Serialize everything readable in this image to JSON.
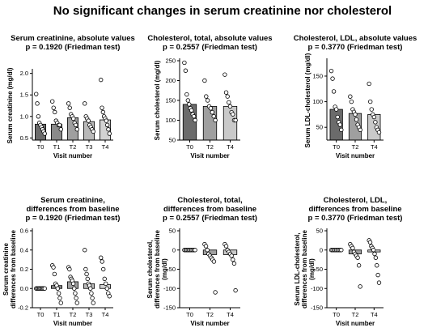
{
  "figure_title": "No significant changes in serum creatinine nor cholesterol",
  "chart_data": [
    {
      "type": "bar",
      "title": [
        "Serum creatinine, absolute values",
        "p = 0.1920 (Friedman test)"
      ],
      "xlabel": "Visit number",
      "ylabel": [
        "Serum creatinine (mg/dl)"
      ],
      "categories": [
        "T0",
        "T1",
        "T2",
        "T3",
        "T4"
      ],
      "values": [
        0.82,
        0.82,
        0.97,
        0.88,
        0.92
      ],
      "bar_colors": [
        "#6b6b6b",
        "#8a8a8a",
        "#9f9f9f",
        "#b9b9b9",
        "#d2d2d2"
      ],
      "points": [
        [
          1.52,
          1.3,
          1.0,
          0.85,
          0.8,
          0.75,
          0.7,
          0.65,
          0.6
        ],
        [
          1.35,
          1.2,
          1.1,
          0.9,
          0.85,
          0.8,
          0.8,
          0.7
        ],
        [
          1.3,
          1.2,
          1.05,
          1.0,
          0.95,
          0.85,
          0.8,
          0.7
        ],
        [
          1.3,
          1.0,
          0.95,
          0.9,
          0.8,
          0.75,
          0.7,
          0.65
        ],
        [
          1.85,
          1.2,
          1.1,
          1.0,
          0.95,
          0.9,
          0.8,
          0.7,
          0.6
        ]
      ],
      "ylim": [
        0.45,
        2.05
      ],
      "yticks": [
        0.5,
        1.0,
        1.5,
        2.0
      ],
      "ytick_labels": [
        "0.5",
        "1.0",
        "1.5",
        "2.0"
      ]
    },
    {
      "type": "bar",
      "title": [
        "Cholesterol, total, absolute values",
        "p = 0.2557 (Friedman test)"
      ],
      "xlabel": "Visit number",
      "ylabel": [
        "Serum cholesterol (mg/dl)"
      ],
      "categories": [
        "T0",
        "T2",
        "T4"
      ],
      "values": [
        140,
        135,
        135
      ],
      "bar_colors": [
        "#6b6b6b",
        "#9f9f9f",
        "#c9c9c9"
      ],
      "points": [
        [
          245,
          225,
          165,
          150,
          140,
          130,
          125,
          115,
          110,
          100
        ],
        [
          200,
          160,
          150,
          135,
          130,
          120,
          110,
          100
        ],
        [
          215,
          170,
          160,
          145,
          135,
          120,
          115,
          100,
          100
        ]
      ],
      "ylim": [
        50,
        250
      ],
      "yticks": [
        50,
        100,
        150,
        200,
        250
      ],
      "ytick_labels": [
        "50",
        "100",
        "150",
        "200",
        "250"
      ]
    },
    {
      "type": "bar",
      "title": [
        "Cholesterol, LDL, absolute values",
        "p = 0.3770 (Friedman test)"
      ],
      "xlabel": "Visit number",
      "ylabel": [
        "Serum LDL-cholesterol (mg/dl)"
      ],
      "categories": [
        "T0",
        "T2",
        "T4"
      ],
      "values": [
        85,
        77,
        75
      ],
      "bar_colors": [
        "#6b6b6b",
        "#9f9f9f",
        "#c9c9c9"
      ],
      "points": [
        [
          160,
          145,
          120,
          90,
          85,
          70,
          60,
          55,
          45
        ],
        [
          110,
          100,
          85,
          80,
          75,
          65,
          55,
          50,
          45
        ],
        [
          135,
          100,
          85,
          75,
          70,
          60,
          50,
          45,
          40
        ]
      ],
      "ylim": [
        25,
        180
      ],
      "yticks": [
        50,
        100,
        150
      ],
      "ytick_labels": [
        "50",
        "100",
        "150"
      ]
    },
    {
      "type": "bar",
      "title": [
        "Serum creatinine,",
        "differences from baseline",
        "p = 0.1920 (Friedman test)"
      ],
      "xlabel": "Visit number",
      "ylabel": [
        "Serum creatinine",
        "differences from baseline"
      ],
      "categories": [
        "T0",
        "T1",
        "T2",
        "T3",
        "T4"
      ],
      "values": [
        0.0,
        0.03,
        0.07,
        0.05,
        0.04
      ],
      "bar_colors": [
        "#6b6b6b",
        "#8a8a8a",
        "#9f9f9f",
        "#b9b9b9",
        "#d2d2d2"
      ],
      "points": [
        [
          0.0,
          0.0,
          0.0,
          0.0,
          0.0,
          0.0,
          0.0,
          0.0,
          0.0
        ],
        [
          0.24,
          0.22,
          0.15,
          0.05,
          0.03,
          0.0,
          -0.05,
          -0.1,
          -0.15
        ],
        [
          0.22,
          0.2,
          0.12,
          0.1,
          0.08,
          0.05,
          0.0,
          -0.05,
          -0.1,
          -0.15
        ],
        [
          0.4,
          0.2,
          0.15,
          0.1,
          0.05,
          0.03,
          0.0,
          -0.05,
          -0.1,
          -0.15
        ],
        [
          0.32,
          0.28,
          0.2,
          0.1,
          0.05,
          0.0,
          -0.05,
          -0.08
        ]
      ],
      "ylim": [
        -0.2,
        0.6
      ],
      "yticks": [
        -0.2,
        0.0,
        0.2,
        0.4,
        0.6
      ],
      "ytick_labels": [
        "-0.2",
        "0.0",
        "0.2",
        "0.4",
        "0.6"
      ]
    },
    {
      "type": "bar",
      "title": [
        "Cholesterol, total,",
        "differences from baseline",
        "p = 0.2557 (Friedman test)"
      ],
      "xlabel": "Visit number",
      "ylabel": [
        "Serum cholesterol,",
        "differences from baseline",
        "(mg/dl)"
      ],
      "categories": [
        "T0",
        "T2",
        "T4"
      ],
      "values": [
        0,
        -12,
        -12
      ],
      "bar_colors": [
        "#6b6b6b",
        "#9f9f9f",
        "#c9c9c9"
      ],
      "points": [
        [
          0,
          0,
          0,
          0,
          0,
          0,
          0,
          0,
          0,
          0
        ],
        [
          15,
          10,
          0,
          -10,
          -15,
          -20,
          -25,
          -30,
          -110
        ],
        [
          15,
          10,
          0,
          -5,
          -10,
          -15,
          -25,
          -35,
          -105
        ]
      ],
      "ylim": [
        -150,
        50
      ],
      "yticks": [
        -150,
        -100,
        -50,
        0,
        50
      ],
      "ytick_labels": [
        "-150",
        "-100",
        "-50",
        "0",
        "50"
      ]
    },
    {
      "type": "bar",
      "title": [
        "Cholesterol, LDL,",
        "differences from baseline",
        "p = 0.3770 (Friedman test)"
      ],
      "xlabel": "Visit number",
      "ylabel": [
        "Serum LDL-cholesterol,",
        "differences from baseline",
        "(mg/dl)"
      ],
      "categories": [
        "T0",
        "T2",
        "T4"
      ],
      "values": [
        0,
        -10,
        -5
      ],
      "bar_colors": [
        "#6b6b6b",
        "#9f9f9f",
        "#c9c9c9"
      ],
      "points": [
        [
          0,
          0,
          0,
          0,
          0,
          0,
          0,
          0,
          0
        ],
        [
          15,
          10,
          5,
          -5,
          -10,
          -15,
          -20,
          -40,
          -95
        ],
        [
          25,
          20,
          10,
          5,
          0,
          -10,
          -20,
          -40,
          -65,
          -85
        ]
      ],
      "ylim": [
        -150,
        50
      ],
      "yticks": [
        -150,
        -100,
        -50,
        0,
        50
      ],
      "ytick_labels": [
        "-150",
        "-100",
        "-50",
        "0",
        "50"
      ]
    }
  ]
}
